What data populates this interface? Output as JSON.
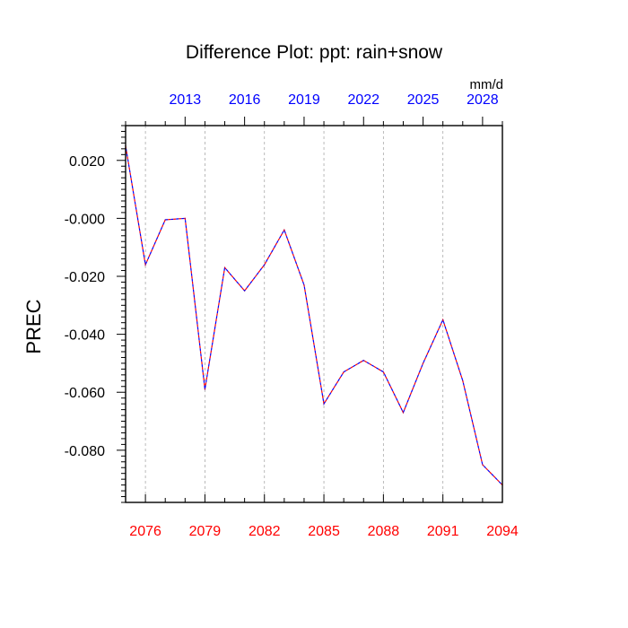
{
  "chart_data": {
    "type": "line",
    "title": "Difference Plot: ppt: rain+snow",
    "units": "mm/d",
    "ylabel": "PREC",
    "ylim": [
      -0.098,
      0.032
    ],
    "y_ticks": [
      0.02,
      0.0,
      -0.02,
      -0.04,
      -0.06,
      -0.08
    ],
    "y_tick_labels": [
      "0.020",
      "-0.000",
      "-0.020",
      "-0.040",
      "-0.060",
      "-0.080"
    ],
    "x_bottom": {
      "range": [
        2075,
        2094
      ],
      "ticks": [
        2076,
        2079,
        2082,
        2085,
        2088,
        2091,
        2094
      ],
      "tick_labels": [
        "2076",
        "2079",
        "2082",
        "2085",
        "2088",
        "2091",
        "2094"
      ],
      "color": "#ff0000"
    },
    "x_top": {
      "range": [
        2010,
        2029
      ],
      "ticks": [
        2013,
        2016,
        2019,
        2022,
        2025,
        2028
      ],
      "tick_labels": [
        "2013",
        "2016",
        "2019",
        "2022",
        "2025",
        "2028"
      ],
      "color": "#0000ff"
    },
    "grid": "vertical dashed at major bottom ticks",
    "series": [
      {
        "line_colors": [
          "#ff0000",
          "#0000ff"
        ],
        "style": "dashed",
        "x": [
          2075,
          2076,
          2077,
          2078,
          2079,
          2080,
          2081,
          2082,
          2083,
          2084,
          2085,
          2086,
          2087,
          2088,
          2089,
          2090,
          2091,
          2092,
          2093,
          2094
        ],
        "values": [
          0.025,
          -0.016,
          -0.0005,
          0.0,
          -0.059,
          -0.017,
          -0.025,
          -0.016,
          -0.004,
          -0.023,
          -0.064,
          -0.053,
          -0.049,
          -0.053,
          -0.067,
          -0.05,
          -0.035,
          -0.056,
          -0.085,
          -0.092
        ]
      }
    ]
  }
}
